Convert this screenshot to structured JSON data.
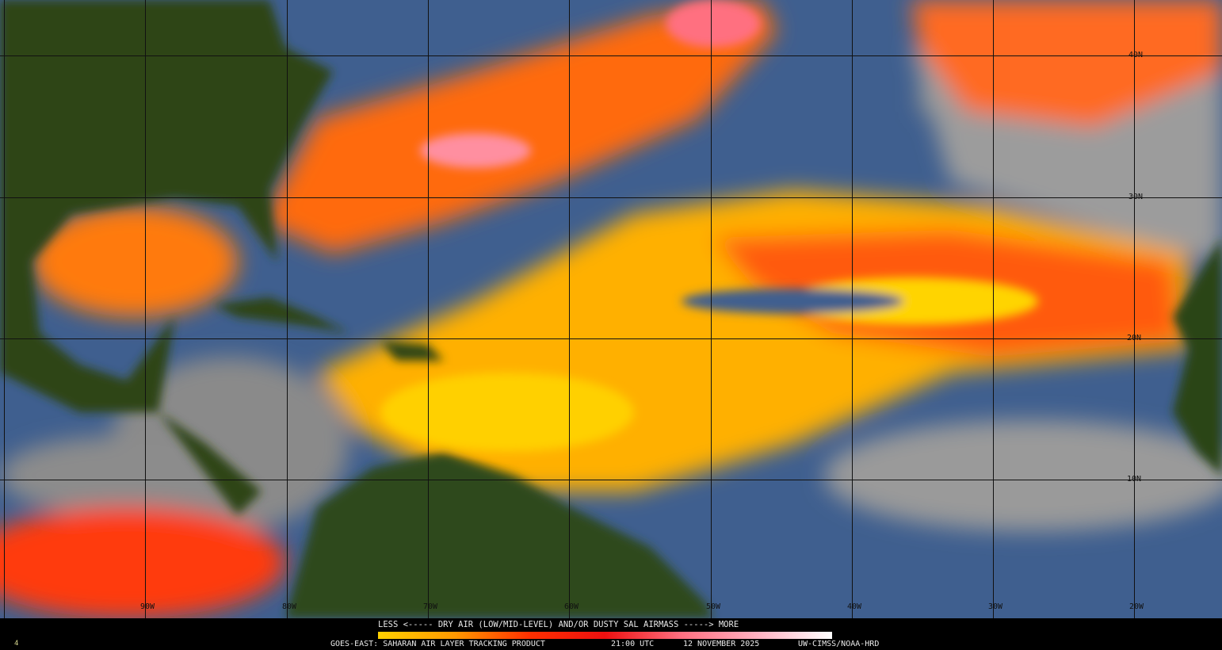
{
  "product": {
    "legend_caption": "LESS <----- DRY AIR (LOW/MID-LEVEL) AND/OR DUSTY SAL AIRMASS -----> MORE",
    "satellite_product": "GOES-EAST: SAHARAN AIR LAYER TRACKING PRODUCT",
    "time": "21:00 UTC",
    "date": "12 NOVEMBER 2025",
    "credit": "UW-CIMSS/NOAA-HRD",
    "frame_marker": "4"
  },
  "colorbar": {
    "low_label": "LESS",
    "high_label": "MORE",
    "colors": [
      "#ffd000",
      "#ff9a00",
      "#ff3000",
      "#ee1010",
      "#ff6f80",
      "#ffb0c0",
      "#ffffff"
    ]
  },
  "grid": {
    "longitude_labels": [
      "90W",
      "80W",
      "70W",
      "60W",
      "50W",
      "40W",
      "30W",
      "20W"
    ],
    "latitude_labels": [
      "40N",
      "30N",
      "20N",
      "10N"
    ]
  },
  "colors": {
    "ocean": "#3f5f8f",
    "land": "#2d4418",
    "cloud": "#9a9a9a",
    "sal_yellow": "#ffd400",
    "sal_orange": "#ff8a00",
    "sal_red": "#ff3a10",
    "sal_pink": "#ff7f90"
  }
}
